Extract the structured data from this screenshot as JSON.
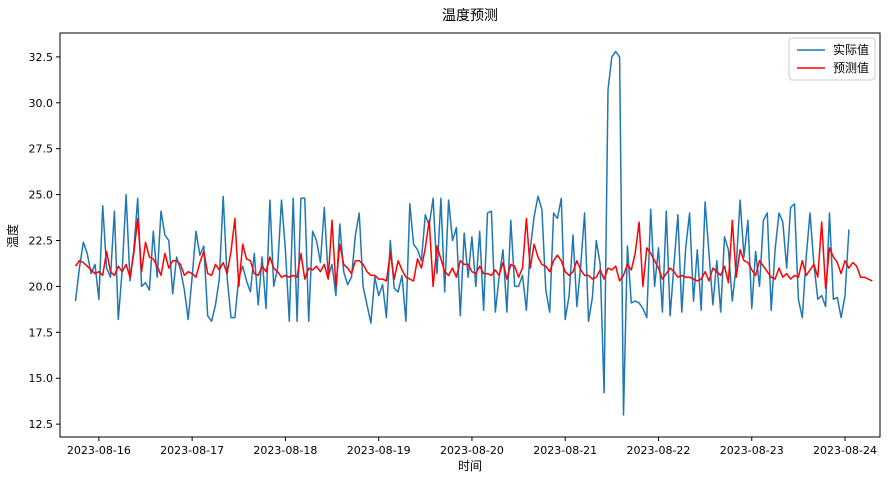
{
  "chart_data": {
    "type": "line",
    "title": "温度预测",
    "xlabel": "时间",
    "ylabel": "温度",
    "x_ticks": [
      "2023-08-16",
      "2023-08-17",
      "2023-08-18",
      "2023-08-19",
      "2023-08-20",
      "2023-08-21",
      "2023-08-22",
      "2023-08-23",
      "2023-08-24"
    ],
    "y_ticks": [
      "12.5",
      "15.0",
      "17.5",
      "20.0",
      "22.5",
      "25.0",
      "27.5",
      "30.0",
      "32.5"
    ],
    "xlim": [
      "2023-08-15 14:00",
      "2023-08-24 09:00"
    ],
    "ylim": [
      11.8,
      33.8
    ],
    "grid": false,
    "legend_position": "top-right",
    "start": "2023-08-15 18:00",
    "step_hours": 1,
    "series": [
      {
        "name": "实际值",
        "color": "#1f77b4",
        "values": [
          19.2,
          21.0,
          22.4,
          21.8,
          20.7,
          21.2,
          19.3,
          24.4,
          21.0,
          20.5,
          24.1,
          18.2,
          20.9,
          25.0,
          20.3,
          22.0,
          24.8,
          20.0,
          20.2,
          19.8,
          23.0,
          20.5,
          24.1,
          22.8,
          22.5,
          19.6,
          21.6,
          20.9,
          19.8,
          18.2,
          20.5,
          23.0,
          21.7,
          22.2,
          18.4,
          18.1,
          19.0,
          20.4,
          24.9,
          20.5,
          18.3,
          18.3,
          20.5,
          21.1,
          20.3,
          19.7,
          21.8,
          19.0,
          21.6,
          18.8,
          24.7,
          20.0,
          21.0,
          24.7,
          22.0,
          18.1,
          24.8,
          18.1,
          24.8,
          24.8,
          18.1,
          23.0,
          22.5,
          21.3,
          24.3,
          20.5,
          21.2,
          19.5,
          23.4,
          20.8,
          20.1,
          20.5,
          22.8,
          24.0,
          20.0,
          19.0,
          18.0,
          20.5,
          19.5,
          20.1,
          18.3,
          22.5,
          19.9,
          19.7,
          20.6,
          18.1,
          24.5,
          22.3,
          22.0,
          21.4,
          23.9,
          23.3,
          24.8,
          20.7,
          24.8,
          19.7,
          24.7,
          22.5,
          23.2,
          18.4,
          22.9,
          20.5,
          22.7,
          20.0,
          23.0,
          18.7,
          24.0,
          24.1,
          18.6,
          20.5,
          22.0,
          18.6,
          23.6,
          20.0,
          20.0,
          20.6,
          18.7,
          22.0,
          23.8,
          24.9,
          24.2,
          19.8,
          18.6,
          24.0,
          23.7,
          24.8,
          18.2,
          19.5,
          22.8,
          18.9,
          21.2,
          24.0,
          18.1,
          19.4,
          22.5,
          21.2,
          14.2,
          30.7,
          32.5,
          32.8,
          32.5,
          13.0,
          22.2,
          19.1,
          19.2,
          19.1,
          18.8,
          18.3,
          24.2,
          20.0,
          22.1,
          18.6,
          24.1,
          18.4,
          21.2,
          23.9,
          18.6,
          22.1,
          24.0,
          19.2,
          22.0,
          18.7,
          24.6,
          21.8,
          19.0,
          21.4,
          18.6,
          22.7,
          22.0,
          19.2,
          21.1,
          24.7,
          21.6,
          23.6,
          18.8,
          21.9,
          20.0,
          23.6,
          24.0,
          18.7,
          22.0,
          24.0,
          23.5,
          21.0,
          24.3,
          24.5,
          19.3,
          18.3,
          21.6,
          24.0,
          21.2,
          19.3,
          19.5,
          18.9,
          24.0,
          19.3,
          19.4,
          18.3,
          19.5,
          23.1
        ]
      },
      {
        "name": "预测值",
        "color": "#ff0000",
        "values": [
          21.1,
          21.4,
          21.3,
          21.1,
          20.9,
          20.7,
          20.8,
          20.6,
          21.9,
          20.8,
          20.6,
          21.1,
          20.8,
          21.2,
          20.5,
          21.8,
          23.7,
          20.8,
          22.4,
          21.6,
          21.5,
          21.1,
          20.6,
          21.8,
          21.0,
          21.4,
          21.4,
          21.2,
          20.6,
          20.8,
          20.7,
          20.5,
          21.3,
          21.9,
          20.7,
          20.6,
          21.2,
          20.9,
          21.3,
          20.7,
          21.9,
          23.7,
          20.0,
          22.3,
          21.5,
          21.4,
          20.7,
          20.6,
          21.1,
          20.8,
          21.6,
          21.0,
          20.8,
          20.5,
          20.6,
          20.5,
          20.6,
          20.5,
          21.8,
          20.4,
          21.0,
          20.9,
          21.1,
          20.8,
          21.2,
          20.4,
          23.6,
          20.0,
          22.3,
          21.2,
          21.0,
          20.7,
          21.4,
          21.4,
          21.2,
          20.8,
          20.6,
          20.6,
          20.4,
          20.4,
          20.3,
          21.8,
          20.4,
          21.4,
          20.9,
          20.5,
          20.4,
          20.3,
          21.5,
          21.0,
          22.1,
          23.6,
          20.0,
          22.2,
          21.5,
          20.8,
          20.6,
          21.0,
          20.5,
          21.4,
          21.2,
          21.2,
          20.8,
          20.7,
          21.1,
          20.7,
          20.7,
          20.6,
          20.9,
          20.6,
          21.3,
          20.4,
          21.2,
          21.1,
          20.5,
          21.0,
          23.7,
          21.0,
          22.3,
          21.6,
          21.2,
          21.1,
          20.8,
          21.4,
          21.7,
          21.4,
          20.8,
          20.6,
          20.8,
          21.4,
          20.9,
          20.6,
          20.6,
          20.4,
          20.5,
          20.9,
          20.4,
          21.0,
          20.9,
          21.1,
          20.3,
          20.6,
          21.2,
          20.9,
          21.8,
          23.5,
          20.0,
          22.1,
          21.8,
          21.4,
          21.0,
          20.4,
          20.7,
          21.0,
          20.8,
          20.5,
          20.6,
          20.5,
          20.5,
          20.4,
          20.3,
          20.4,
          20.8,
          20.3,
          21.0,
          20.8,
          20.6,
          21.1,
          20.2,
          23.6,
          20.5,
          22.0,
          21.4,
          21.3,
          20.9,
          20.6,
          21.4,
          21.1,
          20.8,
          20.5,
          20.4,
          21.0,
          20.5,
          20.7,
          20.4,
          20.6,
          20.5,
          21.4,
          20.6,
          20.9,
          21.2,
          20.5,
          23.5,
          19.9,
          22.1,
          21.6,
          21.3,
          20.7,
          21.4,
          21.0,
          21.3,
          21.1,
          20.5,
          20.5,
          20.4,
          20.3
        ]
      }
    ]
  }
}
